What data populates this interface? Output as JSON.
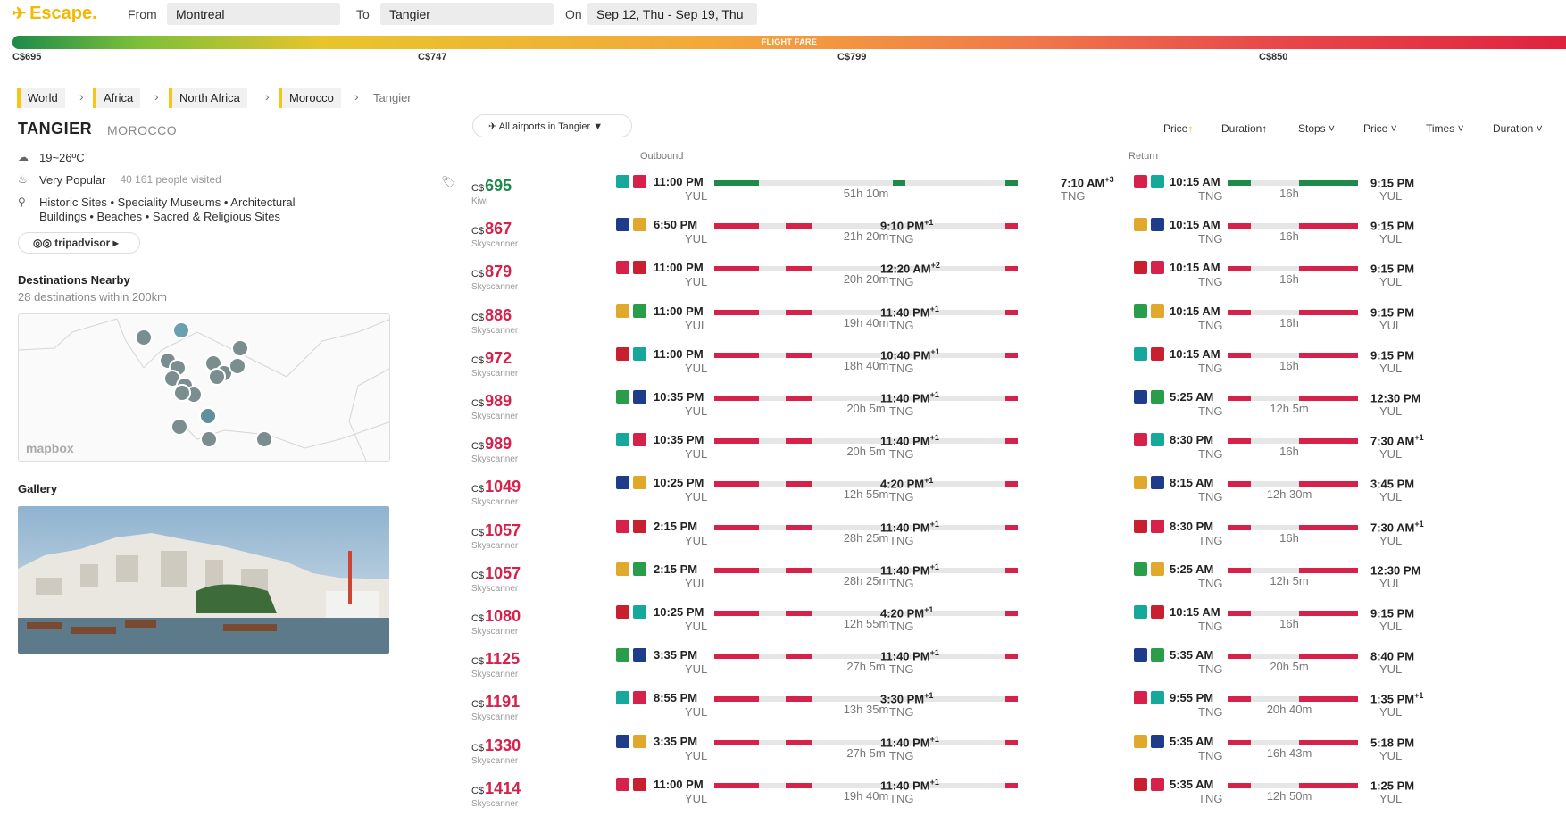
{
  "header": {
    "logo": "Escape.",
    "from_label": "From",
    "from_value": "Montreal",
    "to_label": "To",
    "to_value": "Tangier",
    "on_label": "On",
    "on_value": "Sep 12, Thu - Sep 19, Thu"
  },
  "fare_bar": {
    "title": "FLIGHT FARE",
    "marks": [
      "C$695",
      "C$747",
      "C$799",
      "C$850"
    ]
  },
  "breadcrumb": [
    "World",
    "Africa",
    "North Africa",
    "Morocco",
    "Tangier"
  ],
  "destination": {
    "city": "TANGIER",
    "country": "MOROCCO",
    "weather": "19~26ºC",
    "popularity": "Very Popular",
    "visitors": "40 161 people visited",
    "attractions_line1": "Historic Sites • Speciality Museums • Architectural",
    "attractions_line2": "Buildings • Beaches • Sacred & Religious Sites",
    "tripadvisor": "tripadvisor"
  },
  "nearby": {
    "title": "Destinations Nearby",
    "subtitle": "28 destinations within 200km",
    "map_attribution": "mapbox"
  },
  "gallery": {
    "title": "Gallery"
  },
  "controls": {
    "airports": "All airports in Tangier",
    "sort_price": "Price",
    "sort_duration": "Duration",
    "filter_stops": "Stops",
    "filter_price": "Price",
    "filter_times": "Times",
    "filter_duration": "Duration",
    "outbound": "Outbound",
    "return": "Return"
  },
  "flights": [
    {
      "cur": "C$",
      "price": "695",
      "src": "Kiwi",
      "best": true,
      "ob": {
        "dep": "11:00 PM",
        "arr": "7:10 AM",
        "plus": "+3",
        "from": "YUL",
        "to": "TNG",
        "dur": "51h 10m"
      },
      "rt": {
        "dep": "10:15 AM",
        "arr": "9:15 PM",
        "plus": "",
        "from": "TNG",
        "to": "YUL",
        "dur": "16h"
      }
    },
    {
      "cur": "C$",
      "price": "867",
      "src": "Skyscanner",
      "ob": {
        "dep": "6:50 PM",
        "arr": "9:10 PM",
        "plus": "+1",
        "from": "YUL",
        "to": "TNG",
        "dur": "21h 20m"
      },
      "rt": {
        "dep": "10:15 AM",
        "arr": "9:15 PM",
        "plus": "",
        "from": "TNG",
        "to": "YUL",
        "dur": "16h"
      }
    },
    {
      "cur": "C$",
      "price": "879",
      "src": "Skyscanner",
      "ob": {
        "dep": "11:00 PM",
        "arr": "12:20 AM",
        "plus": "+2",
        "from": "YUL",
        "to": "TNG",
        "dur": "20h 20m"
      },
      "rt": {
        "dep": "10:15 AM",
        "arr": "9:15 PM",
        "plus": "",
        "from": "TNG",
        "to": "YUL",
        "dur": "16h"
      }
    },
    {
      "cur": "C$",
      "price": "886",
      "src": "Skyscanner",
      "ob": {
        "dep": "11:00 PM",
        "arr": "11:40 PM",
        "plus": "+1",
        "from": "YUL",
        "to": "TNG",
        "dur": "19h 40m"
      },
      "rt": {
        "dep": "10:15 AM",
        "arr": "9:15 PM",
        "plus": "",
        "from": "TNG",
        "to": "YUL",
        "dur": "16h"
      }
    },
    {
      "cur": "C$",
      "price": "972",
      "src": "Skyscanner",
      "ob": {
        "dep": "11:00 PM",
        "arr": "10:40 PM",
        "plus": "+1",
        "from": "YUL",
        "to": "TNG",
        "dur": "18h 40m"
      },
      "rt": {
        "dep": "10:15 AM",
        "arr": "9:15 PM",
        "plus": "",
        "from": "TNG",
        "to": "YUL",
        "dur": "16h"
      }
    },
    {
      "cur": "C$",
      "price": "989",
      "src": "Skyscanner",
      "ob": {
        "dep": "10:35 PM",
        "arr": "11:40 PM",
        "plus": "+1",
        "from": "YUL",
        "to": "TNG",
        "dur": "20h 5m"
      },
      "rt": {
        "dep": "5:25 AM",
        "arr": "12:30 PM",
        "plus": "",
        "from": "TNG",
        "to": "YUL",
        "dur": "12h 5m"
      }
    },
    {
      "cur": "C$",
      "price": "989",
      "src": "Skyscanner",
      "ob": {
        "dep": "10:35 PM",
        "arr": "11:40 PM",
        "plus": "+1",
        "from": "YUL",
        "to": "TNG",
        "dur": "20h 5m"
      },
      "rt": {
        "dep": "8:30 PM",
        "arr": "7:30 AM",
        "plus": "+1",
        "from": "TNG",
        "to": "YUL",
        "dur": "16h"
      }
    },
    {
      "cur": "C$",
      "price": "1049",
      "src": "Skyscanner",
      "ob": {
        "dep": "10:25 PM",
        "arr": "4:20 PM",
        "plus": "+1",
        "from": "YUL",
        "to": "TNG",
        "dur": "12h 55m"
      },
      "rt": {
        "dep": "8:15 AM",
        "arr": "3:45 PM",
        "plus": "",
        "from": "TNG",
        "to": "YUL",
        "dur": "12h 30m"
      }
    },
    {
      "cur": "C$",
      "price": "1057",
      "src": "Skyscanner",
      "ob": {
        "dep": "2:15 PM",
        "arr": "11:40 PM",
        "plus": "+1",
        "from": "YUL",
        "to": "TNG",
        "dur": "28h 25m"
      },
      "rt": {
        "dep": "8:30 PM",
        "arr": "7:30 AM",
        "plus": "+1",
        "from": "TNG",
        "to": "YUL",
        "dur": "16h"
      }
    },
    {
      "cur": "C$",
      "price": "1057",
      "src": "Skyscanner",
      "ob": {
        "dep": "2:15 PM",
        "arr": "11:40 PM",
        "plus": "+1",
        "from": "YUL",
        "to": "TNG",
        "dur": "28h 25m"
      },
      "rt": {
        "dep": "5:25 AM",
        "arr": "12:30 PM",
        "plus": "",
        "from": "TNG",
        "to": "YUL",
        "dur": "12h 5m"
      }
    },
    {
      "cur": "C$",
      "price": "1080",
      "src": "Skyscanner",
      "ob": {
        "dep": "10:25 PM",
        "arr": "4:20 PM",
        "plus": "+1",
        "from": "YUL",
        "to": "TNG",
        "dur": "12h 55m"
      },
      "rt": {
        "dep": "10:15 AM",
        "arr": "9:15 PM",
        "plus": "",
        "from": "TNG",
        "to": "YUL",
        "dur": "16h"
      }
    },
    {
      "cur": "C$",
      "price": "1125",
      "src": "Skyscanner",
      "ob": {
        "dep": "3:35 PM",
        "arr": "11:40 PM",
        "plus": "+1",
        "from": "YUL",
        "to": "TNG",
        "dur": "27h 5m"
      },
      "rt": {
        "dep": "5:35 AM",
        "arr": "8:40 PM",
        "plus": "",
        "from": "TNG",
        "to": "YUL",
        "dur": "20h 5m"
      }
    },
    {
      "cur": "C$",
      "price": "1191",
      "src": "Skyscanner",
      "ob": {
        "dep": "8:55 PM",
        "arr": "3:30 PM",
        "plus": "+1",
        "from": "YUL",
        "to": "TNG",
        "dur": "13h 35m"
      },
      "rt": {
        "dep": "9:55 PM",
        "arr": "1:35 PM",
        "plus": "+1",
        "from": "TNG",
        "to": "YUL",
        "dur": "20h 40m"
      }
    },
    {
      "cur": "C$",
      "price": "1330",
      "src": "Skyscanner",
      "ob": {
        "dep": "3:35 PM",
        "arr": "11:40 PM",
        "plus": "+1",
        "from": "YUL",
        "to": "TNG",
        "dur": "27h 5m"
      },
      "rt": {
        "dep": "5:35 AM",
        "arr": "5:18 PM",
        "plus": "",
        "from": "TNG",
        "to": "YUL",
        "dur": "16h 43m"
      }
    },
    {
      "cur": "C$",
      "price": "1414",
      "src": "Skyscanner",
      "ob": {
        "dep": "11:00 PM",
        "arr": "11:40 PM",
        "plus": "+1",
        "from": "YUL",
        "to": "TNG",
        "dur": "19h 40m"
      },
      "rt": {
        "dep": "5:35 AM",
        "arr": "1:25 PM",
        "plus": "",
        "from": "TNG",
        "to": "YUL",
        "dur": "12h 50m"
      }
    }
  ],
  "colors": {
    "accent": "#f5b800",
    "price": "#d6214a",
    "best": "#1e8a4a",
    "bar_red": "#d6214a",
    "bar_green": "#1e8a4a"
  }
}
